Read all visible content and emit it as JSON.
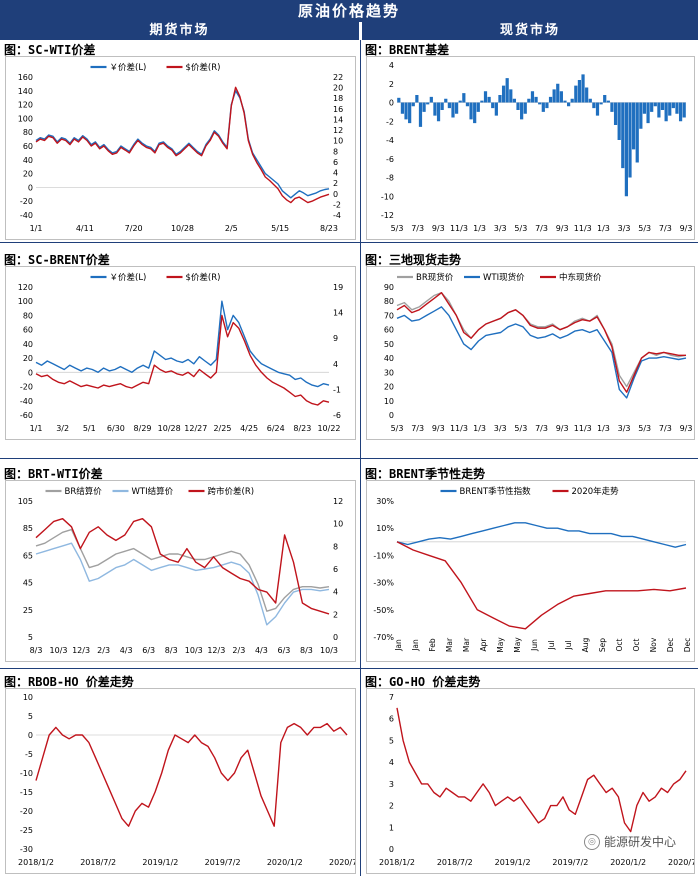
{
  "header": {
    "title": "原油价格趋势",
    "left_section": "期货市场",
    "right_section": "现货市场"
  },
  "watermark": "能源研发中心",
  "colors": {
    "blue": "#1f6fbf",
    "red": "#c0141c",
    "gray": "#a0a0a0",
    "lightblue": "#8fb8e0",
    "navy": "#1f3f7a"
  },
  "chart_data": [
    {
      "id": "sc_wti",
      "title": "图：SC-WTI价差",
      "type": "line",
      "legend": [
        "￥价差(L)",
        "$价差(R)"
      ],
      "x_ticks": [
        "1/1",
        "4/11",
        "7/20",
        "10/28",
        "2/5",
        "5/15",
        "8/23"
      ],
      "y_ticks_left": [
        "160",
        "140",
        "120",
        "100",
        "80",
        "60",
        "40",
        "20",
        "0",
        "-20",
        "-40"
      ],
      "y_ticks_right": [
        "22",
        "20",
        "18",
        "16",
        "14",
        "12",
        "10",
        "8",
        "6",
        "4",
        "2",
        "0",
        "-2",
        "-4"
      ],
      "ylim_left": [
        -40,
        160
      ],
      "series": [
        {
          "name": "￥价差(L)",
          "axis": "left",
          "color": "#1f6fbf",
          "values": [
            68,
            72,
            70,
            76,
            74,
            66,
            72,
            70,
            64,
            72,
            68,
            75,
            70,
            62,
            66,
            58,
            62,
            55,
            50,
            52,
            60,
            56,
            52,
            62,
            70,
            64,
            60,
            58,
            52,
            64,
            66,
            60,
            56,
            48,
            52,
            58,
            64,
            58,
            52,
            48,
            62,
            70,
            82,
            76,
            66,
            58,
            120,
            140,
            130,
            110,
            70,
            50,
            40,
            30,
            20,
            15,
            10,
            5,
            -5,
            -10,
            -15,
            -10,
            -5,
            -8,
            -12,
            -10,
            -8,
            -5,
            -3,
            -2
          ]
        },
        {
          "name": "$价差(R)",
          "axis": "left",
          "color": "#c0141c",
          "values": [
            66,
            70,
            68,
            74,
            72,
            64,
            70,
            68,
            62,
            70,
            66,
            73,
            68,
            60,
            64,
            56,
            60,
            53,
            48,
            50,
            58,
            54,
            50,
            60,
            68,
            62,
            58,
            56,
            50,
            62,
            64,
            58,
            54,
            46,
            50,
            56,
            62,
            56,
            50,
            46,
            60,
            68,
            80,
            74,
            64,
            56,
            118,
            145,
            132,
            108,
            68,
            48,
            36,
            26,
            15,
            10,
            4,
            -2,
            -12,
            -18,
            -22,
            -16,
            -14,
            -18,
            -22,
            -20,
            -17,
            -14,
            -12,
            -10
          ]
        }
      ]
    },
    {
      "id": "brent_basis",
      "title": "图：BRENT基差",
      "type": "bar",
      "x_ticks": [
        "5/3",
        "7/3",
        "9/3",
        "11/3",
        "1/3",
        "3/3",
        "5/3",
        "7/3",
        "9/3",
        "11/3",
        "1/3",
        "3/3",
        "5/3",
        "7/3",
        "9/3"
      ],
      "y_ticks": [
        "4",
        "2",
        "0",
        "-2",
        "-4",
        "-6",
        "-8",
        "-10",
        "-12"
      ],
      "ylim": [
        -12,
        4
      ],
      "values": [
        0.5,
        -1.2,
        -1.8,
        -2.2,
        -0.4,
        0.8,
        -2.6,
        -1.0,
        -0.2,
        0.6,
        -1.4,
        -2.0,
        -0.8,
        0.4,
        -0.6,
        -1.6,
        -1.2,
        0.2,
        1.0,
        -0.4,
        -1.8,
        -2.2,
        -1.0,
        0.2,
        1.2,
        0.6,
        -0.6,
        -1.4,
        0.8,
        1.8,
        2.6,
        1.4,
        0.4,
        -0.8,
        -1.8,
        -1.2,
        0.4,
        1.2,
        0.6,
        -0.2,
        -1.0,
        -0.6,
        0.6,
        1.4,
        2.0,
        1.2,
        0.2,
        -0.4,
        0.4,
        1.8,
        2.4,
        3.0,
        1.6,
        0.4,
        -0.6,
        -1.4,
        -0.2,
        0.8,
        0.2,
        -1.0,
        -2.4,
        -4.0,
        -7.0,
        -10.0,
        -8.0,
        -5.0,
        -6.4,
        -2.8,
        -1.2,
        -2.2,
        -1.0,
        -0.4,
        -1.6,
        -0.8,
        -2.0,
        -1.4,
        -0.6,
        -1.2,
        -2.0,
        -1.6
      ]
    },
    {
      "id": "sc_brent",
      "title": "图：SC-BRENT价差",
      "type": "line",
      "legend": [
        "￥价差(L)",
        "$价差(R)"
      ],
      "x_ticks": [
        "1/1",
        "3/2",
        "5/1",
        "6/30",
        "8/29",
        "10/28",
        "12/27",
        "2/25",
        "4/25",
        "6/24",
        "8/23",
        "10/22"
      ],
      "y_ticks_left": [
        "120",
        "100",
        "80",
        "60",
        "40",
        "20",
        "0",
        "-20",
        "-40",
        "-60"
      ],
      "y_ticks_right": [
        "19",
        "14",
        "9",
        "4",
        "-1",
        "-6"
      ],
      "ylim_left": [
        -60,
        120
      ],
      "series": [
        {
          "name": "￥价差(L)",
          "axis": "left",
          "color": "#1f6fbf",
          "values": [
            14,
            10,
            16,
            12,
            8,
            4,
            10,
            6,
            2,
            6,
            4,
            0,
            6,
            2,
            4,
            8,
            4,
            0,
            6,
            10,
            6,
            30,
            24,
            18,
            20,
            16,
            14,
            18,
            12,
            22,
            16,
            10,
            18,
            100,
            60,
            80,
            70,
            50,
            30,
            20,
            12,
            8,
            4,
            0,
            -2,
            -4,
            -10,
            -8,
            -14,
            -18,
            -20,
            -16,
            -18
          ]
        },
        {
          "name": "$价差(R)",
          "axis": "left",
          "color": "#c0141c",
          "values": [
            -2,
            -6,
            -4,
            -10,
            -14,
            -16,
            -12,
            -16,
            -20,
            -18,
            -20,
            -22,
            -18,
            -20,
            -18,
            -16,
            -20,
            -22,
            -18,
            -14,
            -16,
            10,
            4,
            0,
            2,
            -2,
            -4,
            0,
            -6,
            4,
            -2,
            -8,
            0,
            80,
            50,
            70,
            62,
            44,
            24,
            10,
            0,
            -8,
            -14,
            -18,
            -22,
            -28,
            -34,
            -32,
            -40,
            -44,
            -46,
            -40,
            -42
          ]
        }
      ]
    },
    {
      "id": "three_spot",
      "title": "图：三地现货走势",
      "type": "line",
      "legend": [
        "BR现货价",
        "WTI现货价",
        "中东现货价"
      ],
      "x_ticks": [
        "5/3",
        "7/3",
        "9/3",
        "11/3",
        "1/3",
        "3/3",
        "5/3",
        "7/3",
        "9/3",
        "11/3",
        "1/3",
        "3/3",
        "5/3",
        "7/3",
        "9/3"
      ],
      "y_ticks": [
        "90",
        "80",
        "70",
        "60",
        "50",
        "40",
        "30",
        "20",
        "10",
        "0"
      ],
      "ylim": [
        0,
        90
      ],
      "series": [
        {
          "name": "BR现货价",
          "color": "#a0a0a0",
          "values": [
            77,
            79,
            74,
            76,
            80,
            84,
            86,
            80,
            70,
            60,
            54,
            60,
            64,
            66,
            68,
            72,
            74,
            70,
            64,
            62,
            62,
            64,
            60,
            62,
            66,
            68,
            66,
            70,
            60,
            50,
            28,
            20,
            30,
            40,
            44,
            42,
            44,
            42,
            41,
            42
          ]
        },
        {
          "name": "WTI现货价",
          "color": "#1f6fbf",
          "values": [
            68,
            70,
            66,
            67,
            70,
            73,
            76,
            70,
            60,
            50,
            46,
            52,
            56,
            57,
            58,
            62,
            64,
            62,
            56,
            54,
            55,
            57,
            54,
            56,
            59,
            60,
            58,
            60,
            52,
            44,
            18,
            12,
            26,
            38,
            40,
            40,
            41,
            40,
            39,
            40
          ]
        },
        {
          "name": "中东现货价",
          "color": "#c0141c",
          "values": [
            74,
            77,
            72,
            74,
            78,
            82,
            86,
            78,
            70,
            58,
            54,
            60,
            64,
            66,
            68,
            72,
            74,
            70,
            63,
            61,
            61,
            63,
            60,
            62,
            65,
            67,
            66,
            69,
            60,
            48,
            24,
            16,
            28,
            40,
            44,
            43,
            44,
            43,
            42,
            42
          ]
        }
      ]
    },
    {
      "id": "brt_wti",
      "title": "图：BRT-WTI价差",
      "type": "line",
      "legend": [
        "BR结算价",
        "WTI结算价",
        "跨市价差(R)"
      ],
      "x_ticks": [
        "8/3",
        "10/3",
        "12/3",
        "2/3",
        "4/3",
        "6/3",
        "8/3",
        "10/3",
        "12/3",
        "2/3",
        "4/3",
        "6/3",
        "8/3",
        "10/3"
      ],
      "y_ticks_left": [
        "105",
        "85",
        "65",
        "45",
        "25",
        "5"
      ],
      "y_ticks_right": [
        "12",
        "10",
        "8",
        "6",
        "4",
        "2",
        "0"
      ],
      "ylim_left": [
        5,
        105
      ],
      "series": [
        {
          "name": "BR结算价",
          "axis": "left",
          "color": "#a0a0a0",
          "values": [
            72,
            74,
            78,
            82,
            84,
            70,
            56,
            58,
            62,
            66,
            68,
            70,
            66,
            62,
            64,
            66,
            66,
            64,
            62,
            62,
            64,
            66,
            68,
            66,
            58,
            44,
            24,
            26,
            34,
            40,
            42,
            42,
            41,
            42
          ]
        },
        {
          "name": "WTI结算价",
          "axis": "left",
          "color": "#8fb8e0",
          "values": [
            66,
            68,
            70,
            72,
            74,
            62,
            46,
            48,
            52,
            56,
            58,
            62,
            58,
            54,
            56,
            58,
            58,
            56,
            54,
            55,
            56,
            58,
            60,
            58,
            52,
            36,
            14,
            20,
            30,
            38,
            40,
            40,
            39,
            40
          ]
        },
        {
          "name": "跨市价差(R)",
          "axis": "left",
          "color": "#c0141c",
          "values": [
            78,
            84,
            90,
            92,
            86,
            70,
            82,
            86,
            80,
            76,
            80,
            90,
            92,
            86,
            66,
            62,
            60,
            70,
            60,
            56,
            64,
            56,
            52,
            48,
            46,
            40,
            38,
            30,
            80,
            60,
            30,
            26,
            24,
            22
          ]
        }
      ]
    },
    {
      "id": "brent_season",
      "title": "图：BRENT季节性走势",
      "type": "line",
      "legend": [
        "BRENT季节性指数",
        "2020年走势"
      ],
      "x_ticks": [
        "Jan",
        "Jan",
        "Feb",
        "Mar",
        "Mar",
        "Apr",
        "May",
        "May",
        "Jun",
        "Jul",
        "Jul",
        "Aug",
        "Sep",
        "Oct",
        "Oct",
        "Nov",
        "Dec",
        "Dec"
      ],
      "y_ticks": [
        "30%",
        "10%",
        "-10%",
        "-30%",
        "-50%",
        "-70%"
      ],
      "ylim": [
        -70,
        30
      ],
      "series": [
        {
          "name": "BRENT季节性指数",
          "color": "#1f6fbf",
          "values": [
            0,
            -2,
            0,
            2,
            3,
            2,
            4,
            6,
            8,
            10,
            12,
            14,
            14,
            12,
            10,
            10,
            8,
            8,
            6,
            6,
            6,
            4,
            4,
            2,
            0,
            -2,
            -4,
            -2
          ]
        },
        {
          "name": "2020年走势",
          "color": "#c0141c",
          "values": [
            0,
            -6,
            -10,
            -14,
            -30,
            -50,
            -56,
            -62,
            -64,
            -54,
            -46,
            -40,
            -38,
            -36,
            -36,
            -36,
            -35,
            -36,
            -34
          ]
        }
      ]
    },
    {
      "id": "rbob_ho",
      "title": "图：RBOB-HO 价差走势",
      "type": "line",
      "x_ticks": [
        "2018/1/2",
        "2018/7/2",
        "2019/1/2",
        "2019/7/2",
        "2020/1/2",
        "2020/7/2"
      ],
      "y_ticks": [
        "10",
        "5",
        "0",
        "-5",
        "-10",
        "-15",
        "-20",
        "-25",
        "-30"
      ],
      "ylim": [
        -30,
        10
      ],
      "series": [
        {
          "name": "RBOB-HO",
          "color": "#c0141c",
          "values": [
            -12,
            -6,
            0,
            2,
            0,
            -1,
            0,
            0,
            -2,
            -6,
            -10,
            -14,
            -18,
            -22,
            -24,
            -20,
            -18,
            -19,
            -15,
            -10,
            -4,
            0,
            -1,
            -2,
            0,
            -2,
            -3,
            -6,
            -10,
            -12,
            -10,
            -6,
            -4,
            -10,
            -16,
            -20,
            -24,
            -2,
            2,
            3,
            2,
            0,
            2,
            2,
            3,
            1,
            2,
            0
          ]
        }
      ]
    },
    {
      "id": "go_ho",
      "title": "图：GO-HO 价差走势",
      "type": "line",
      "x_ticks": [
        "2018/1/2",
        "2018/7/2",
        "2019/1/2",
        "2019/7/2",
        "2020/1/2",
        "2020/7/2"
      ],
      "y_ticks": [
        "7",
        "6",
        "5",
        "4",
        "3",
        "2",
        "1",
        "0"
      ],
      "ylim": [
        0,
        7
      ],
      "series": [
        {
          "name": "GO-HO",
          "color": "#c0141c",
          "values": [
            6.5,
            5,
            4,
            3.5,
            3,
            3,
            2.6,
            2.4,
            2.8,
            2.6,
            2.4,
            2.4,
            2.2,
            2.6,
            3,
            2.6,
            2,
            2.2,
            2.4,
            2.2,
            2.4,
            2,
            1.6,
            1.2,
            1.4,
            2,
            2,
            2.4,
            1.8,
            1.6,
            2.4,
            3.2,
            3.4,
            3,
            2.6,
            2.8,
            2.4,
            1.2,
            0.8,
            2,
            2.6,
            2.2,
            2.4,
            2.8,
            2.6,
            3,
            3.2,
            3.6
          ]
        }
      ]
    }
  ]
}
